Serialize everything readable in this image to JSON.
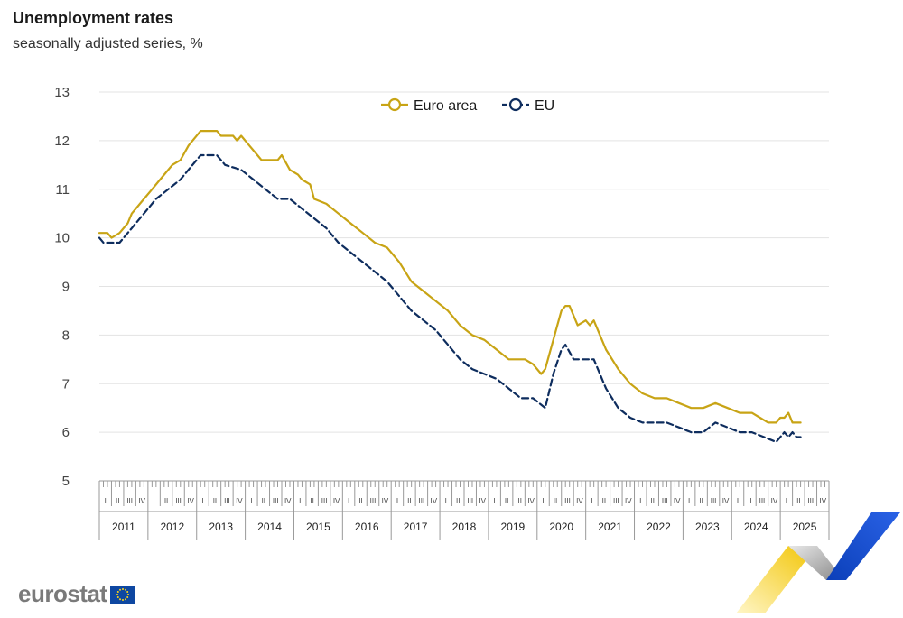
{
  "title": "Unemployment rates",
  "subtitle": "seasonally adjusted series, %",
  "brand": {
    "logo_text": "eurostat",
    "flag_icon": "eu-flag-icon"
  },
  "colors": {
    "euro_area": "#c8a415",
    "eu": "#0e2d5e",
    "grid": "#e3e3e3",
    "axis": "#999999"
  },
  "chart_data": {
    "type": "line",
    "title": "Unemployment rates",
    "subtitle": "seasonally adjusted series, %",
    "xlabel": "",
    "ylabel": "",
    "ylim": [
      5,
      13
    ],
    "yticks": [
      "5",
      "6",
      "7",
      "8",
      "9",
      "10",
      "11",
      "12",
      "13"
    ],
    "years": [
      "2011",
      "2012",
      "2013",
      "2014",
      "2015",
      "2016",
      "2017",
      "2018",
      "2019",
      "2020",
      "2021",
      "2022",
      "2023",
      "2024",
      "2025"
    ],
    "quarters": [
      "I",
      "II",
      "III",
      "IV"
    ],
    "x_start": "2011-01",
    "x_end": "2025-04",
    "frequency": "monthly",
    "grid": true,
    "legend_position": "top-center",
    "legend": [
      "Euro area",
      "EU"
    ],
    "series": [
      {
        "name": "Euro area",
        "style": "solid",
        "anchors": [
          [
            "2011-01",
            10.1
          ],
          [
            "2011-03",
            10.1
          ],
          [
            "2011-04",
            10.0
          ],
          [
            "2011-06",
            10.1
          ],
          [
            "2011-08",
            10.3
          ],
          [
            "2011-09",
            10.5
          ],
          [
            "2011-12",
            10.8
          ],
          [
            "2012-02",
            11.0
          ],
          [
            "2012-04",
            11.2
          ],
          [
            "2012-07",
            11.5
          ],
          [
            "2012-09",
            11.6
          ],
          [
            "2012-11",
            11.9
          ],
          [
            "2012-12",
            12.0
          ],
          [
            "2013-02",
            12.2
          ],
          [
            "2013-06",
            12.2
          ],
          [
            "2013-07",
            12.1
          ],
          [
            "2013-10",
            12.1
          ],
          [
            "2013-11",
            12.0
          ],
          [
            "2013-12",
            12.1
          ],
          [
            "2014-02",
            11.9
          ],
          [
            "2014-04",
            11.7
          ],
          [
            "2014-05",
            11.6
          ],
          [
            "2014-09",
            11.6
          ],
          [
            "2014-10",
            11.7
          ],
          [
            "2014-12",
            11.4
          ],
          [
            "2015-02",
            11.3
          ],
          [
            "2015-03",
            11.2
          ],
          [
            "2015-05",
            11.1
          ],
          [
            "2015-06",
            10.8
          ],
          [
            "2015-09",
            10.7
          ],
          [
            "2015-12",
            10.5
          ],
          [
            "2016-03",
            10.3
          ],
          [
            "2016-06",
            10.1
          ],
          [
            "2016-09",
            9.9
          ],
          [
            "2016-12",
            9.8
          ],
          [
            "2017-03",
            9.5
          ],
          [
            "2017-06",
            9.1
          ],
          [
            "2017-09",
            8.9
          ],
          [
            "2017-12",
            8.7
          ],
          [
            "2018-03",
            8.5
          ],
          [
            "2018-06",
            8.2
          ],
          [
            "2018-09",
            8.0
          ],
          [
            "2018-12",
            7.9
          ],
          [
            "2019-03",
            7.7
          ],
          [
            "2019-06",
            7.5
          ],
          [
            "2019-08",
            7.5
          ],
          [
            "2019-10",
            7.5
          ],
          [
            "2019-12",
            7.4
          ],
          [
            "2020-02",
            7.2
          ],
          [
            "2020-03",
            7.3
          ],
          [
            "2020-06",
            8.2
          ],
          [
            "2020-07",
            8.5
          ],
          [
            "2020-08",
            8.6
          ],
          [
            "2020-09",
            8.6
          ],
          [
            "2020-11",
            8.2
          ],
          [
            "2021-01",
            8.3
          ],
          [
            "2021-02",
            8.2
          ],
          [
            "2021-03",
            8.3
          ],
          [
            "2021-06",
            7.7
          ],
          [
            "2021-09",
            7.3
          ],
          [
            "2021-12",
            7.0
          ],
          [
            "2022-03",
            6.8
          ],
          [
            "2022-06",
            6.7
          ],
          [
            "2022-09",
            6.7
          ],
          [
            "2022-12",
            6.6
          ],
          [
            "2023-03",
            6.5
          ],
          [
            "2023-06",
            6.5
          ],
          [
            "2023-09",
            6.6
          ],
          [
            "2023-12",
            6.5
          ],
          [
            "2024-03",
            6.4
          ],
          [
            "2024-06",
            6.4
          ],
          [
            "2024-08",
            6.3
          ],
          [
            "2024-10",
            6.2
          ],
          [
            "2024-12",
            6.2
          ],
          [
            "2025-01",
            6.3
          ],
          [
            "2025-02",
            6.3
          ],
          [
            "2025-03",
            6.4
          ],
          [
            "2025-04",
            6.2
          ],
          [
            "2025-06",
            6.2
          ]
        ]
      },
      {
        "name": "EU",
        "style": "dashed",
        "anchors": [
          [
            "2011-01",
            10.0
          ],
          [
            "2011-02",
            9.9
          ],
          [
            "2011-04",
            9.9
          ],
          [
            "2011-06",
            9.9
          ],
          [
            "2011-09",
            10.2
          ],
          [
            "2011-12",
            10.5
          ],
          [
            "2012-03",
            10.8
          ],
          [
            "2012-06",
            11.0
          ],
          [
            "2012-09",
            11.2
          ],
          [
            "2012-12",
            11.5
          ],
          [
            "2013-02",
            11.7
          ],
          [
            "2013-06",
            11.7
          ],
          [
            "2013-08",
            11.5
          ],
          [
            "2013-12",
            11.4
          ],
          [
            "2014-03",
            11.2
          ],
          [
            "2014-06",
            11.0
          ],
          [
            "2014-09",
            10.8
          ],
          [
            "2014-12",
            10.8
          ],
          [
            "2015-03",
            10.6
          ],
          [
            "2015-06",
            10.4
          ],
          [
            "2015-09",
            10.2
          ],
          [
            "2015-12",
            9.9
          ],
          [
            "2016-03",
            9.7
          ],
          [
            "2016-06",
            9.5
          ],
          [
            "2016-09",
            9.3
          ],
          [
            "2016-12",
            9.1
          ],
          [
            "2017-03",
            8.8
          ],
          [
            "2017-06",
            8.5
          ],
          [
            "2017-09",
            8.3
          ],
          [
            "2017-12",
            8.1
          ],
          [
            "2018-03",
            7.8
          ],
          [
            "2018-06",
            7.5
          ],
          [
            "2018-09",
            7.3
          ],
          [
            "2018-12",
            7.2
          ],
          [
            "2019-03",
            7.1
          ],
          [
            "2019-06",
            6.9
          ],
          [
            "2019-09",
            6.7
          ],
          [
            "2019-12",
            6.7
          ],
          [
            "2020-03",
            6.5
          ],
          [
            "2020-05",
            7.2
          ],
          [
            "2020-07",
            7.7
          ],
          [
            "2020-08",
            7.8
          ],
          [
            "2020-10",
            7.5
          ],
          [
            "2020-12",
            7.5
          ],
          [
            "2021-03",
            7.5
          ],
          [
            "2021-06",
            6.9
          ],
          [
            "2021-09",
            6.5
          ],
          [
            "2021-12",
            6.3
          ],
          [
            "2022-03",
            6.2
          ],
          [
            "2022-06",
            6.2
          ],
          [
            "2022-09",
            6.2
          ],
          [
            "2022-12",
            6.1
          ],
          [
            "2023-03",
            6.0
          ],
          [
            "2023-06",
            6.0
          ],
          [
            "2023-09",
            6.2
          ],
          [
            "2023-12",
            6.1
          ],
          [
            "2024-03",
            6.0
          ],
          [
            "2024-06",
            6.0
          ],
          [
            "2024-09",
            5.9
          ],
          [
            "2024-12",
            5.8
          ],
          [
            "2025-02",
            6.0
          ],
          [
            "2025-03",
            5.9
          ],
          [
            "2025-04",
            6.0
          ],
          [
            "2025-05",
            5.9
          ],
          [
            "2025-06",
            5.9
          ]
        ]
      }
    ]
  }
}
